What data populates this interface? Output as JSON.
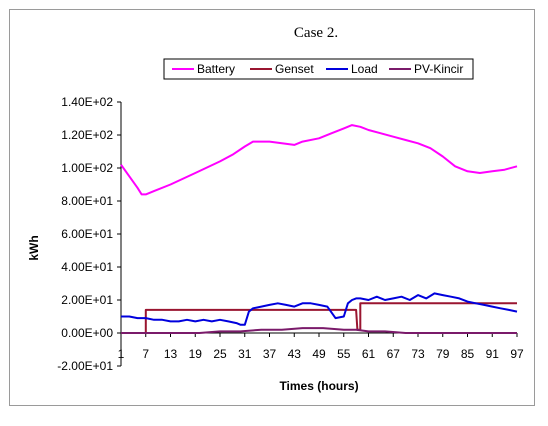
{
  "chart_data": {
    "type": "line",
    "title": "Case 2.",
    "xlabel": "Times (hours)",
    "ylabel": "kWh",
    "xlim": [
      1,
      97
    ],
    "ylim": [
      -20,
      140
    ],
    "y_ticks": [
      -20,
      0,
      20,
      40,
      60,
      80,
      100,
      120,
      140
    ],
    "y_tick_labels": [
      "-2.00E+01",
      "0.00E+00",
      "2.00E+01",
      "4.00E+01",
      "6.00E+01",
      "8.00E+01",
      "1.00E+02",
      "1.20E+02",
      "1.40E+02"
    ],
    "x_ticks": [
      1,
      7,
      13,
      19,
      25,
      31,
      37,
      43,
      49,
      55,
      61,
      67,
      73,
      79,
      85,
      91,
      97
    ],
    "x_tick_labels": [
      "1",
      "7",
      "13",
      "19",
      "25",
      "31",
      "37",
      "43",
      "49",
      "55",
      "61",
      "67",
      "73",
      "79",
      "85",
      "91",
      "97"
    ],
    "legend_position": "top",
    "grid": false,
    "series": [
      {
        "name": "Battery",
        "color": "#ff00ff",
        "x": [
          1,
          3,
          5,
          6,
          7,
          9,
          13,
          19,
          25,
          28,
          31,
          33,
          37,
          40,
          43,
          45,
          49,
          52,
          55,
          57,
          59,
          61,
          64,
          67,
          70,
          73,
          76,
          79,
          82,
          85,
          88,
          91,
          94,
          97
        ],
        "y": [
          102,
          95,
          88,
          84,
          84,
          86,
          90,
          97,
          104,
          108,
          113,
          116,
          116,
          115,
          114,
          116,
          118,
          121,
          124,
          126,
          125,
          123,
          121,
          119,
          117,
          115,
          112,
          107,
          101,
          98,
          97,
          98,
          99,
          101
        ]
      },
      {
        "name": "Genset",
        "color": "#9a1530",
        "x": [
          1,
          6,
          7,
          7.01,
          49,
          58,
          58.3,
          59,
          59.01,
          97
        ],
        "y": [
          0,
          0,
          0,
          14,
          14,
          14,
          2,
          2,
          18,
          18
        ]
      },
      {
        "name": "Load",
        "color": "#0000dd",
        "x": [
          1,
          3,
          5,
          7,
          9,
          11,
          13,
          15,
          17,
          19,
          21,
          23,
          25,
          27,
          29,
          30,
          31,
          32,
          33,
          35,
          37,
          39,
          41,
          43,
          45,
          47,
          49,
          51,
          53,
          55,
          56,
          57,
          58,
          59,
          61,
          63,
          65,
          67,
          69,
          71,
          73,
          75,
          77,
          79,
          81,
          83,
          85,
          87,
          89,
          91,
          93,
          95,
          97
        ],
        "y": [
          10,
          10,
          9,
          9,
          8,
          8,
          7,
          7,
          8,
          7,
          8,
          7,
          8,
          7,
          6,
          5,
          5,
          13,
          15,
          16,
          17,
          18,
          17,
          16,
          18,
          18,
          17,
          16,
          9,
          10,
          18,
          20,
          21,
          21,
          20,
          22,
          20,
          21,
          22,
          20,
          23,
          21,
          24,
          23,
          22,
          21,
          19,
          18,
          17,
          16,
          15,
          14,
          13
        ]
      },
      {
        "name": "PV-Kincir",
        "color": "#7a1a6a",
        "x": [
          1,
          20,
          25,
          30,
          35,
          40,
          45,
          50,
          55,
          58,
          61,
          65,
          70,
          97
        ],
        "y": [
          0,
          0,
          1,
          1,
          2,
          2,
          3,
          3,
          2,
          2,
          1,
          1,
          0,
          0
        ]
      }
    ]
  }
}
